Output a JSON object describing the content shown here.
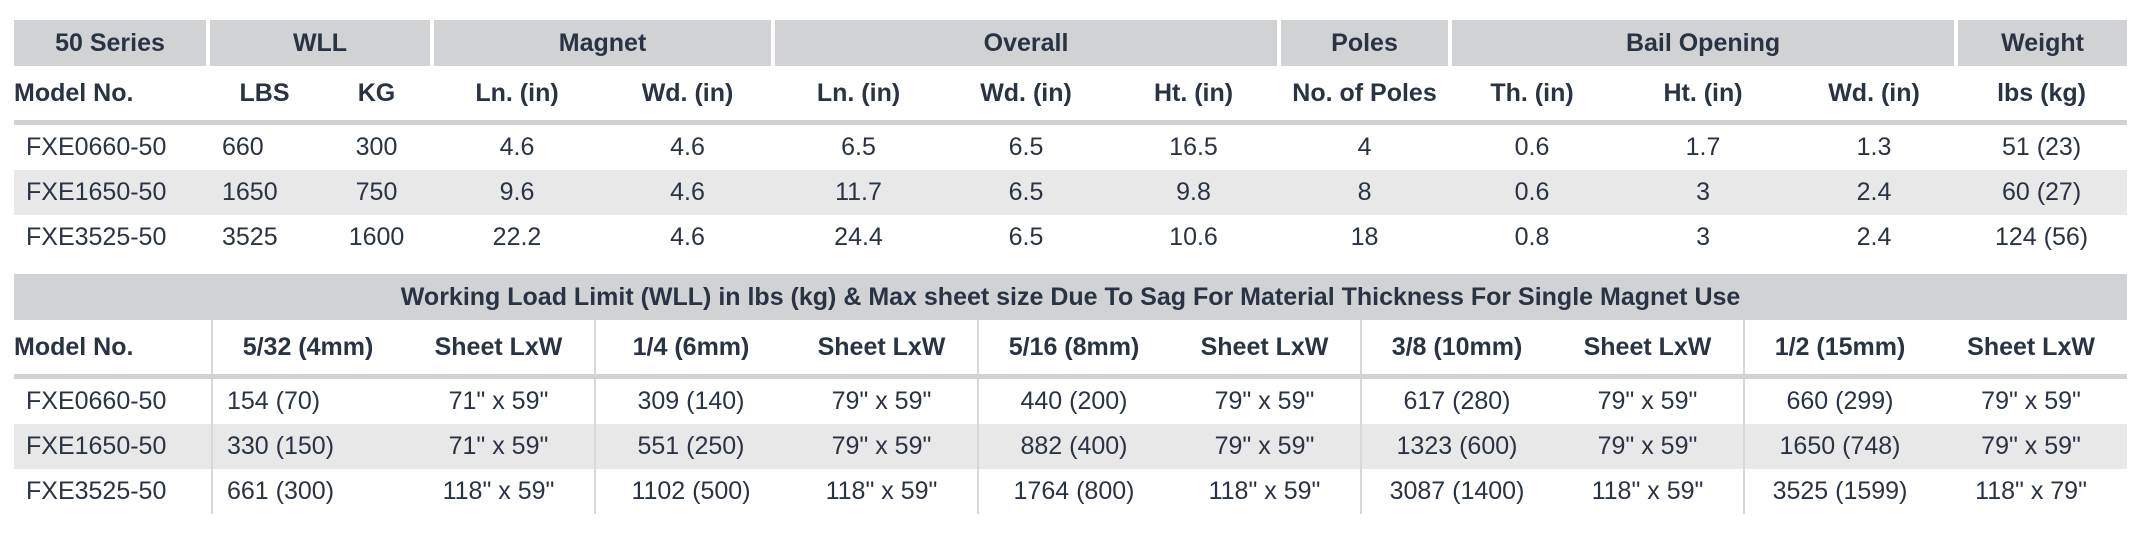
{
  "spec_table": {
    "group_headers": [
      {
        "label": "50 Series",
        "span": 1
      },
      {
        "label": "WLL",
        "span": 2
      },
      {
        "label": "Magnet",
        "span": 2
      },
      {
        "label": "Overall",
        "span": 3
      },
      {
        "label": "Poles",
        "span": 1
      },
      {
        "label": "Bail Opening",
        "span": 3
      },
      {
        "label": "Weight",
        "span": 1
      }
    ],
    "columns": [
      "Model No.",
      "LBS",
      "KG",
      "Ln. (in)",
      "Wd. (in)",
      "Ln. (in)",
      "Wd. (in)",
      "Ht. (in)",
      "No. of Poles",
      "Th. (in)",
      "Ht. (in)",
      "Wd. (in)",
      "lbs (kg)"
    ],
    "rows": [
      [
        "FXE0660-50",
        "660",
        "300",
        "4.6",
        "4.6",
        "6.5",
        "6.5",
        "16.5",
        "4",
        "0.6",
        "1.7",
        "1.3",
        "51  (23)"
      ],
      [
        "FXE1650-50",
        "1650",
        "750",
        "9.6",
        "4.6",
        "11.7",
        "6.5",
        "9.8",
        "8",
        "0.6",
        "3",
        "2.4",
        "60  (27)"
      ],
      [
        "FXE3525-50",
        "3525",
        "1600",
        "22.2",
        "4.6",
        "24.4",
        "6.5",
        "10.6",
        "18",
        "0.8",
        "3",
        "2.4",
        "124  (56)"
      ]
    ]
  },
  "wll_table": {
    "title": "Working Load Limit (WLL) in lbs (kg) & Max sheet size Due To Sag For Material Thickness For Single Magnet Use",
    "columns": [
      "Model No.",
      "5/32 (4mm)",
      "Sheet LxW",
      "1/4 (6mm)",
      "Sheet LxW",
      "5/16 (8mm)",
      "Sheet LxW",
      "3/8 (10mm)",
      "Sheet LxW",
      "1/2 (15mm)",
      "Sheet LxW"
    ],
    "rows": [
      [
        "FXE0660-50",
        "154 (70)",
        "71\" x 59\"",
        "309 (140)",
        "79\" x 59\"",
        "440 (200)",
        "79\" x 59\"",
        "617 (280)",
        "79\" x 59\"",
        "660 (299)",
        "79\" x 59\""
      ],
      [
        "FXE1650-50",
        "330 (150)",
        "71\" x 59\"",
        "551 (250)",
        "79\" x 59\"",
        "882 (400)",
        "79\" x 59\"",
        "1323 (600)",
        "79\" x 59\"",
        "1650 (748)",
        "79\" x 59\""
      ],
      [
        "FXE3525-50",
        "661 (300)",
        "118\" x 59\"",
        "1102 (500)",
        "118\" x 59\"",
        "1764 (800)",
        "118\" x 59\"",
        "3087 (1400)",
        "118\" x 59\"",
        "3525 (1599)",
        "118\" x 79\""
      ]
    ]
  },
  "colors": {
    "text": "#2a3344",
    "header_bg": "#d1d2d4",
    "stripe_bg": "#e8e8e8"
  }
}
